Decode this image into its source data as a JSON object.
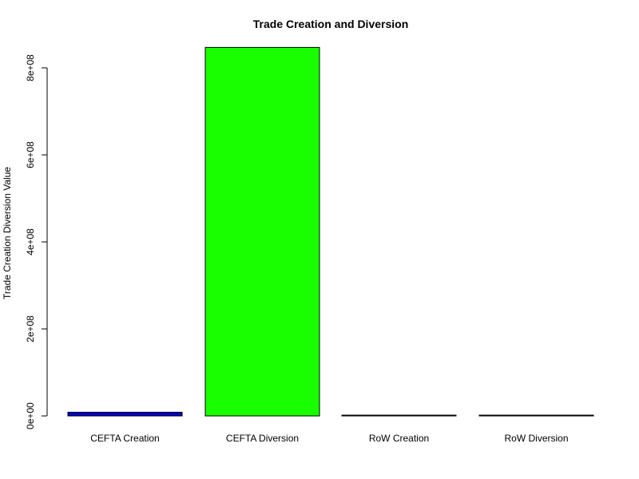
{
  "chart_data": {
    "type": "bar",
    "title": "Trade Creation and Diversion",
    "xlabel": "",
    "ylabel": "Trade Creation Diversion Value",
    "categories": [
      "CEFTA Creation",
      "CEFTA Diversion",
      "RoW Creation",
      "RoW Diversion"
    ],
    "values": [
      8500000,
      847000000,
      1200000,
      500000
    ],
    "colors": [
      "#0000cc",
      "#1aff00",
      "#cc3333",
      "#000000"
    ],
    "ylim": [
      0,
      800000000
    ],
    "yticks": [
      0,
      200000000,
      400000000,
      600000000,
      800000000
    ],
    "ytick_labels": [
      "0e+00",
      "2e+08",
      "4e+08",
      "6e+08",
      "8e+08"
    ],
    "grid": false,
    "legend": "none"
  }
}
